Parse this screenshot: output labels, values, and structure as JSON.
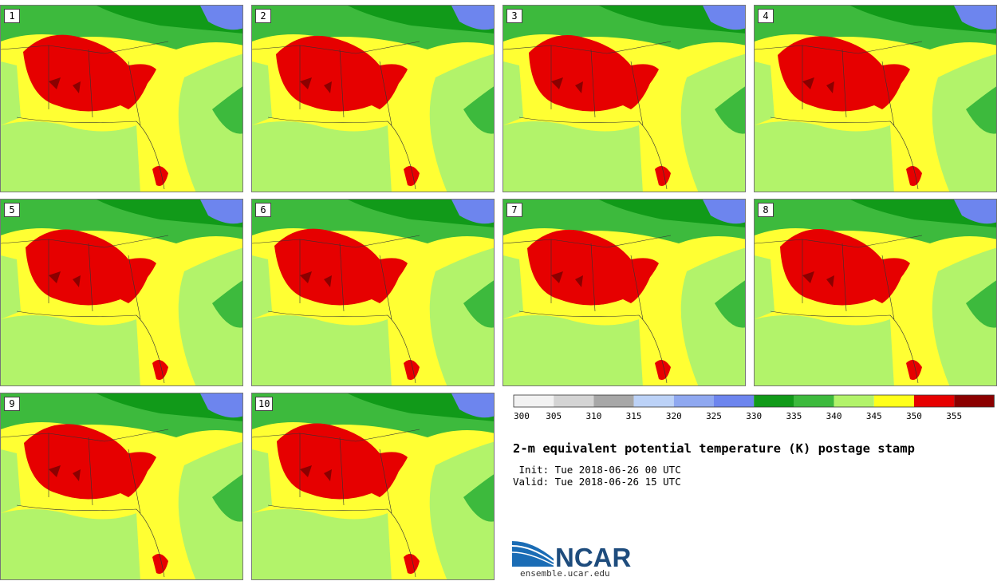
{
  "stamps": [
    {
      "label": "1"
    },
    {
      "label": "2"
    },
    {
      "label": "3"
    },
    {
      "label": "4"
    },
    {
      "label": "5"
    },
    {
      "label": "6"
    },
    {
      "label": "7"
    },
    {
      "label": "8"
    },
    {
      "label": "9"
    },
    {
      "label": "10"
    }
  ],
  "colorbar": {
    "ticks": [
      "300",
      "305",
      "310",
      "315",
      "320",
      "325",
      "330",
      "335",
      "340",
      "345",
      "350",
      "355"
    ],
    "colors": [
      "#f2f2f2",
      "#d4d4d4",
      "#a7a7a7",
      "#bcd2f7",
      "#8fa8f0",
      "#6d85ee",
      "#119a19",
      "#3dba3d",
      "#b2f36a",
      "#ffff1a",
      "#e60000",
      "#8b0000"
    ]
  },
  "map_colors": {
    "ocean": "#b2f36a",
    "land_warm": "#ffff1a",
    "hot": "#e60000",
    "hottest": "#8b0000",
    "north_green": "#3dba3d",
    "north_dark_green": "#119a19",
    "north_blue": "#6d85ee"
  },
  "title": "2-m equivalent potential temperature (K) postage stamp",
  "init": " Init: Tue 2018-06-26 00 UTC",
  "valid": "Valid: Tue 2018-06-26 15 UTC",
  "logo_text": "NCAR",
  "site": "ensemble.ucar.edu"
}
